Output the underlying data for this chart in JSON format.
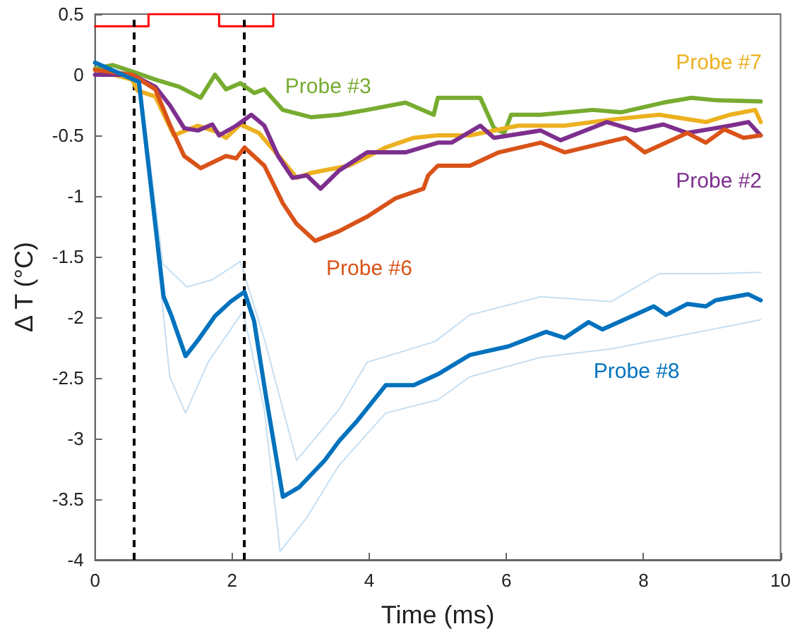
{
  "chart_data": {
    "type": "line",
    "xlabel": "Time (ms)",
    "ylabel": "Δ T (°C)",
    "xlim": [
      0,
      10
    ],
    "xticks": [
      0,
      2,
      4,
      6,
      8,
      10
    ],
    "ylim": [
      -4,
      0.5
    ],
    "yticks": [
      -4,
      -3.5,
      -3,
      -2.5,
      -2,
      -1.5,
      -1,
      -0.5,
      0,
      0.5
    ],
    "grid": false,
    "legend": false,
    "line_style": "solid",
    "marker": "none",
    "ref_lines": [
      {
        "axis": "x",
        "value": 0.56,
        "color": "#000000",
        "line_style": "dashed"
      },
      {
        "axis": "x",
        "value": 2.18,
        "color": "#000000",
        "line_style": "dashed"
      }
    ],
    "series": [
      {
        "type": "step",
        "color": "#ff0000",
        "x": [
          0,
          0.78,
          1.81,
          2.6
        ],
        "values": [
          0.4,
          0.5,
          0.4,
          0.5
        ]
      },
      {
        "color": "#c6dff2",
        "x": [
          0,
          0.64,
          0.99,
          1.34,
          1.71,
          2.12,
          2.47,
          2.94,
          3.56,
          3.97,
          4.96,
          5.47,
          6.5,
          7.53,
          8.23,
          9.05,
          9.71
        ],
        "values": [
          0.1,
          0,
          -1.56,
          -1.75,
          -1.69,
          -1.54,
          -2.18,
          -3.18,
          -2.76,
          -2.37,
          -2.2,
          -1.98,
          -1.83,
          -1.87,
          -1.64,
          -1.64,
          -1.63
        ]
      },
      {
        "color": "#c6dff2",
        "x": [
          0,
          0.64,
          1.09,
          1.32,
          1.65,
          2.16,
          2.47,
          2.7,
          3.09,
          3.56,
          4.24,
          5.0,
          5.47,
          6.5,
          7.53,
          8.64,
          9.71
        ],
        "values": [
          0.1,
          0,
          -2.49,
          -2.79,
          -2.37,
          -1.95,
          -2.76,
          -3.93,
          -3.65,
          -3.22,
          -2.79,
          -2.68,
          -2.49,
          -2.33,
          -2.26,
          -2.14,
          -2.02
        ]
      },
      {
        "name": "Probe #3",
        "color": "#77ac30",
        "x": [
          0,
          0.26,
          0.58,
          0.88,
          1.23,
          1.54,
          1.75,
          1.91,
          2.12,
          2.32,
          2.47,
          2.74,
          3.15,
          3.56,
          3.97,
          4.53,
          4.94,
          5.0,
          5.62,
          5.82,
          5.97,
          6.07,
          6.5,
          7.26,
          7.67,
          8.29,
          8.7,
          9.05,
          9.71
        ],
        "values": [
          0.05,
          0.08,
          0.02,
          -0.04,
          -0.1,
          -0.19,
          0,
          -0.12,
          -0.07,
          -0.15,
          -0.12,
          -0.29,
          -0.35,
          -0.33,
          -0.29,
          -0.23,
          -0.33,
          -0.19,
          -0.19,
          -0.44,
          -0.48,
          -0.33,
          -0.33,
          -0.29,
          -0.31,
          -0.23,
          -0.19,
          -0.21,
          -0.22
        ]
      },
      {
        "name": "Probe #7",
        "color": "#edb120",
        "x": [
          0,
          0.54,
          0.62,
          0.88,
          1.15,
          1.5,
          1.77,
          1.91,
          2.12,
          2.39,
          2.74,
          2.94,
          3.15,
          3.7,
          4.24,
          4.65,
          5.0,
          5.47,
          6.17,
          6.85,
          7.53,
          8.23,
          8.91,
          9.26,
          9.63,
          9.71
        ],
        "values": [
          0.04,
          -0.04,
          -0.13,
          -0.18,
          -0.5,
          -0.42,
          -0.47,
          -0.52,
          -0.41,
          -0.48,
          -0.71,
          -0.85,
          -0.81,
          -0.75,
          -0.6,
          -0.52,
          -0.5,
          -0.5,
          -0.42,
          -0.42,
          -0.37,
          -0.33,
          -0.39,
          -0.33,
          -0.29,
          -0.39
        ]
      },
      {
        "name": "Probe #2",
        "color": "#7e2f8e",
        "x": [
          0,
          0.54,
          0.88,
          1.09,
          1.3,
          1.5,
          1.71,
          1.81,
          2.06,
          2.28,
          2.47,
          2.67,
          2.88,
          3.09,
          3.29,
          3.56,
          3.97,
          4.53,
          5.0,
          5.2,
          5.62,
          5.82,
          6.5,
          6.79,
          7.47,
          7.88,
          8.29,
          8.64,
          9.26,
          9.53,
          9.71
        ],
        "values": [
          0,
          0,
          -0.1,
          -0.25,
          -0.44,
          -0.46,
          -0.41,
          -0.5,
          -0.42,
          -0.33,
          -0.42,
          -0.67,
          -0.85,
          -0.83,
          -0.94,
          -0.79,
          -0.64,
          -0.64,
          -0.56,
          -0.56,
          -0.42,
          -0.52,
          -0.46,
          -0.54,
          -0.39,
          -0.46,
          -0.41,
          -0.48,
          -0.42,
          -0.39,
          -0.5
        ]
      },
      {
        "name": "Probe #6",
        "color": "#d95319",
        "x": [
          0,
          0.54,
          0.88,
          1.09,
          1.3,
          1.54,
          1.91,
          2.06,
          2.18,
          2.47,
          2.74,
          2.94,
          3.21,
          3.56,
          3.97,
          4.38,
          4.79,
          4.86,
          5.0,
          5.47,
          5.89,
          6.5,
          6.85,
          7.74,
          8.02,
          8.64,
          8.91,
          9.18,
          9.46,
          9.71
        ],
        "values": [
          0.04,
          0,
          -0.12,
          -0.41,
          -0.67,
          -0.77,
          -0.67,
          -0.69,
          -0.6,
          -0.75,
          -1.06,
          -1.23,
          -1.37,
          -1.29,
          -1.17,
          -1.02,
          -0.94,
          -0.83,
          -0.75,
          -0.75,
          -0.64,
          -0.56,
          -0.64,
          -0.52,
          -0.64,
          -0.48,
          -0.56,
          -0.45,
          -0.52,
          -0.5
        ]
      },
      {
        "name": "Probe #8",
        "color": "#0072bd",
        "x": [
          0,
          0.64,
          1.0,
          1.11,
          1.32,
          1.5,
          1.75,
          1.98,
          2.18,
          2.32,
          2.49,
          2.74,
          2.98,
          3.35,
          3.56,
          3.83,
          4.24,
          4.65,
          5.0,
          5.47,
          6.03,
          6.58,
          6.85,
          7.2,
          7.4,
          8.15,
          8.33,
          8.64,
          8.91,
          9.05,
          9.53,
          9.71
        ],
        "values": [
          0.1,
          -0.06,
          -1.83,
          -1.98,
          -2.32,
          -2.19,
          -1.99,
          -1.87,
          -1.79,
          -2.03,
          -2.64,
          -3.48,
          -3.4,
          -3.18,
          -3.02,
          -2.85,
          -2.56,
          -2.56,
          -2.47,
          -2.31,
          -2.24,
          -2.12,
          -2.17,
          -2.04,
          -2.1,
          -1.91,
          -1.98,
          -1.89,
          -1.91,
          -1.86,
          -1.81,
          -1.86
        ]
      }
    ]
  }
}
